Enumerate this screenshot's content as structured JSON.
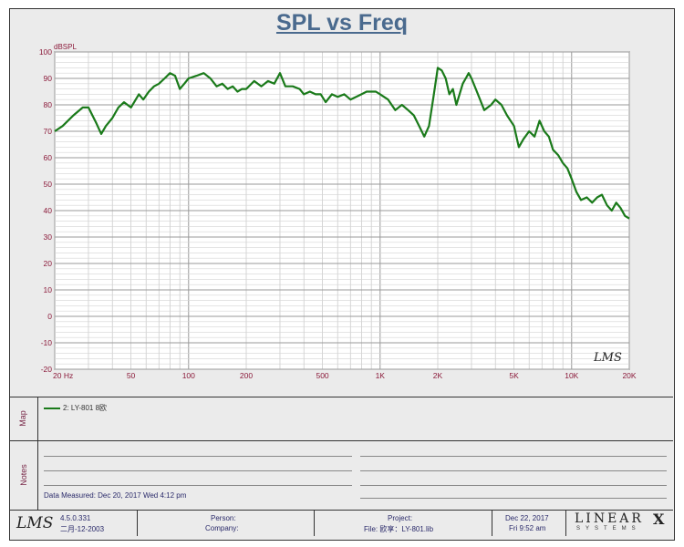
{
  "chart_data": {
    "type": "line",
    "title": "SPL vs Freq",
    "ylabel": "dBSPL",
    "xlabel": "",
    "xscale": "log",
    "xlim": [
      20,
      20000
    ],
    "ylim": [
      -20,
      100
    ],
    "grid": true,
    "y_ticks": [
      100,
      90,
      80,
      70,
      60,
      50,
      40,
      30,
      20,
      10,
      0,
      -10,
      -20
    ],
    "y_tick_labels": [
      "100",
      "90",
      "80",
      "70",
      "60",
      "50",
      "40",
      "30",
      "20",
      "10",
      "0",
      "-10",
      "-20"
    ],
    "x_ticks": [
      20,
      50,
      100,
      200,
      500,
      1000,
      2000,
      5000,
      10000,
      20000
    ],
    "x_tick_labels": [
      "20 Hz",
      "50",
      "100",
      "200",
      "500",
      "1K",
      "2K",
      "5K",
      "10K",
      "20K"
    ],
    "series": [
      {
        "name": "2: LY-801 8欧",
        "color": "#1a7a1a",
        "x": [
          20,
          22,
          25,
          28,
          30,
          33,
          35,
          37,
          40,
          43,
          46,
          50,
          55,
          58,
          62,
          66,
          70,
          75,
          80,
          85,
          90,
          95,
          100,
          110,
          120,
          130,
          140,
          150,
          160,
          170,
          180,
          190,
          200,
          220,
          240,
          260,
          280,
          300,
          320,
          350,
          380,
          400,
          430,
          460,
          490,
          520,
          560,
          600,
          650,
          700,
          750,
          800,
          850,
          900,
          950,
          1000,
          1100,
          1200,
          1300,
          1400,
          1500,
          1600,
          1700,
          1800,
          1900,
          2000,
          2100,
          2200,
          2300,
          2400,
          2500,
          2700,
          2800,
          2900,
          3000,
          3200,
          3500,
          3800,
          4000,
          4300,
          4600,
          5000,
          5300,
          5600,
          6000,
          6400,
          6800,
          7200,
          7600,
          8000,
          8500,
          9000,
          9500,
          10000,
          10600,
          11200,
          12000,
          12800,
          13600,
          14400,
          15300,
          16200,
          17100,
          18000,
          19000,
          20000
        ],
        "y": [
          70,
          72,
          76,
          79,
          79,
          73,
          69,
          72,
          75,
          79,
          81,
          79,
          84,
          82,
          85,
          87,
          88,
          90,
          92,
          91,
          86,
          88,
          90,
          91,
          92,
          90,
          87,
          88,
          86,
          87,
          85,
          86,
          86,
          89,
          87,
          89,
          88,
          92,
          87,
          87,
          86,
          84,
          85,
          84,
          84,
          81,
          84,
          83,
          84,
          82,
          83,
          84,
          85,
          85,
          85,
          84,
          82,
          78,
          80,
          78,
          76,
          72,
          68,
          72,
          83,
          94,
          93,
          90,
          84,
          86,
          80,
          88,
          90,
          92,
          90,
          85,
          78,
          80,
          82,
          80,
          76,
          72,
          64,
          67,
          70,
          68,
          74,
          70,
          68,
          63,
          61,
          58,
          56,
          52,
          47,
          44,
          45,
          43,
          45,
          46,
          42,
          40,
          43,
          41,
          38,
          37
        ]
      }
    ]
  },
  "watermark": "LMS",
  "map": {
    "label": "Map",
    "legend_label": "2: LY-801 8欧",
    "legend_color": "#1a7a1a"
  },
  "notes": {
    "label": "Notes",
    "measured": "Data Measured: Dec 20, 2017  Wed  4:12 pm"
  },
  "footer": {
    "logo": "LMS",
    "version": "4.5.0.331",
    "version_date": "二月-12-2003",
    "person": "Person:",
    "company": "Company:",
    "project": "Project:",
    "file": "File: 欧享：LY-801.lib",
    "date": "Dec 22, 2017",
    "time": "Fri  9:52 am",
    "brand": "LINEAR",
    "brand_x": "X",
    "brand_sub": "SYSTEMS"
  }
}
